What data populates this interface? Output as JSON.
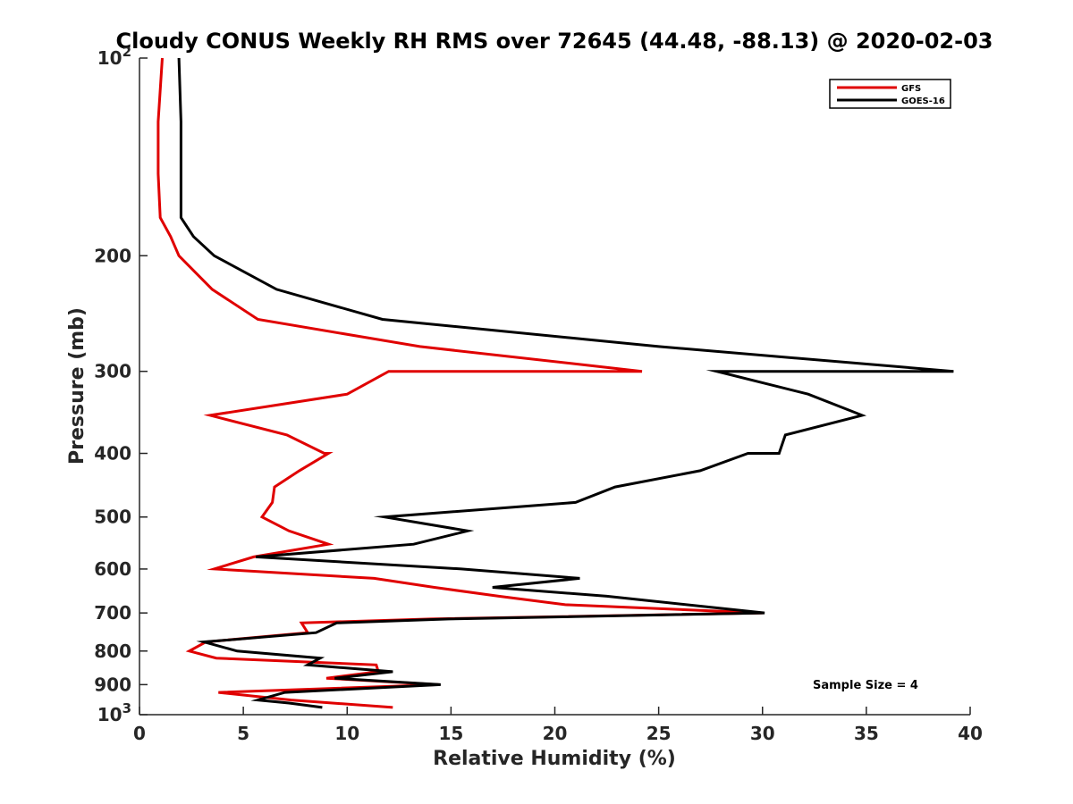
{
  "chart_data": {
    "type": "line",
    "title": "Cloudy CONUS Weekly RH RMS over 72645 (44.48, -88.13) @ 2020-02-03",
    "xlabel": "Relative Humidity (%)",
    "ylabel": "Pressure (mb)",
    "xlim": [
      0,
      40
    ],
    "ylim": [
      100,
      1000
    ],
    "yscale": "log",
    "y_reversed": true,
    "grid": false,
    "legend_position": "top-right",
    "x_ticks": [
      0,
      5,
      10,
      15,
      20,
      25,
      30,
      35,
      40
    ],
    "x_tick_labels": [
      "0",
      "5",
      "10",
      "15",
      "20",
      "25",
      "30",
      "35",
      "40"
    ],
    "y_ticks": [
      100,
      200,
      300,
      400,
      500,
      600,
      700,
      800,
      900,
      1000
    ],
    "y_tick_labels": [
      {
        "base": "10",
        "exp": "2"
      },
      {
        "base": "200",
        "exp": ""
      },
      {
        "base": "300",
        "exp": ""
      },
      {
        "base": "400",
        "exp": ""
      },
      {
        "base": "500",
        "exp": ""
      },
      {
        "base": "600",
        "exp": ""
      },
      {
        "base": "700",
        "exp": ""
      },
      {
        "base": "800",
        "exp": ""
      },
      {
        "base": "900",
        "exp": ""
      },
      {
        "base": "10",
        "exp": "3"
      }
    ],
    "annotation": "Sample Size = 4",
    "series": [
      {
        "name": "GFS",
        "color": "#e00000",
        "points": [
          [
            1.1,
            100
          ],
          [
            0.9,
            125
          ],
          [
            0.9,
            150
          ],
          [
            1.0,
            175
          ],
          [
            1.5,
            187
          ],
          [
            1.9,
            200
          ],
          [
            3.5,
            225
          ],
          [
            5.7,
            250
          ],
          [
            13.5,
            275
          ],
          [
            24.2,
            300
          ],
          [
            12.0,
            300
          ],
          [
            10.0,
            325
          ],
          [
            3.4,
            350
          ],
          [
            7.1,
            375
          ],
          [
            8.9,
            400
          ],
          [
            9.1,
            400
          ],
          [
            7.7,
            425
          ],
          [
            6.5,
            450
          ],
          [
            6.4,
            475
          ],
          [
            5.9,
            500
          ],
          [
            7.2,
            525
          ],
          [
            9.1,
            550
          ],
          [
            5.5,
            575
          ],
          [
            3.6,
            600
          ],
          [
            11.3,
            620
          ],
          [
            14.2,
            640
          ],
          [
            17.3,
            660
          ],
          [
            20.5,
            680
          ],
          [
            30.0,
            700
          ],
          [
            14.0,
            715
          ],
          [
            7.8,
            725
          ],
          [
            8.1,
            750
          ],
          [
            3.2,
            775
          ],
          [
            2.4,
            800
          ],
          [
            3.7,
            820
          ],
          [
            11.4,
            840
          ],
          [
            11.5,
            860
          ],
          [
            9.0,
            880
          ],
          [
            14.4,
            900
          ],
          [
            3.8,
            925
          ],
          [
            7.3,
            950
          ],
          [
            12.2,
            975
          ]
        ]
      },
      {
        "name": "GOES-16",
        "color": "#000000",
        "points": [
          [
            1.9,
            100
          ],
          [
            2.0,
            125
          ],
          [
            2.0,
            150
          ],
          [
            2.0,
            175
          ],
          [
            2.6,
            187
          ],
          [
            3.6,
            200
          ],
          [
            6.6,
            225
          ],
          [
            11.7,
            250
          ],
          [
            25.0,
            275
          ],
          [
            39.2,
            300
          ],
          [
            27.8,
            300
          ],
          [
            32.2,
            325
          ],
          [
            34.8,
            350
          ],
          [
            31.1,
            375
          ],
          [
            30.8,
            400
          ],
          [
            29.3,
            400
          ],
          [
            27.0,
            425
          ],
          [
            22.9,
            450
          ],
          [
            21.0,
            475
          ],
          [
            11.8,
            500
          ],
          [
            15.8,
            525
          ],
          [
            13.2,
            550
          ],
          [
            5.6,
            575
          ],
          [
            15.5,
            600
          ],
          [
            21.2,
            620
          ],
          [
            17.0,
            640
          ],
          [
            22.5,
            660
          ],
          [
            30.1,
            700
          ],
          [
            14.9,
            715
          ],
          [
            9.5,
            725
          ],
          [
            8.5,
            750
          ],
          [
            3.1,
            775
          ],
          [
            4.7,
            800
          ],
          [
            8.7,
            820
          ],
          [
            8.1,
            840
          ],
          [
            12.2,
            860
          ],
          [
            9.4,
            880
          ],
          [
            14.5,
            900
          ],
          [
            7.0,
            925
          ],
          [
            5.7,
            950
          ],
          [
            7.2,
            960
          ],
          [
            8.8,
            975
          ]
        ]
      }
    ]
  }
}
